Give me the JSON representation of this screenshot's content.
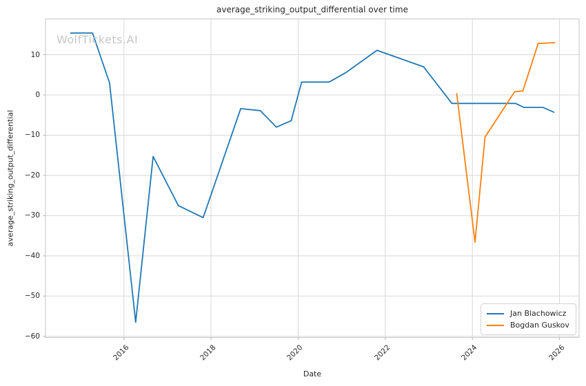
{
  "watermark": {
    "text": "WolfTickets.AI"
  },
  "chart_data": {
    "type": "line",
    "title": "average_striking_output_differential over time",
    "xlabel": "Date",
    "ylabel": "average_striking_output_differential",
    "grid": true,
    "legend_position": "lower right",
    "xlim": [
      2014.2,
      2026.45
    ],
    "ylim": [
      -60.3,
      18.9
    ],
    "x_ticks": [
      {
        "v": 2016,
        "label": "2016"
      },
      {
        "v": 2018,
        "label": "2018"
      },
      {
        "v": 2020,
        "label": "2020"
      },
      {
        "v": 2022,
        "label": "2022"
      },
      {
        "v": 2024,
        "label": "2024"
      },
      {
        "v": 2026,
        "label": "2026"
      }
    ],
    "y_ticks": [
      {
        "v": 10,
        "label": "10"
      },
      {
        "v": 0,
        "label": "0"
      },
      {
        "v": -10,
        "label": "−10"
      },
      {
        "v": -20,
        "label": "−20"
      },
      {
        "v": -30,
        "label": "−30"
      },
      {
        "v": -40,
        "label": "−40"
      },
      {
        "v": -50,
        "label": "−50"
      },
      {
        "v": -60,
        "label": "−60"
      }
    ],
    "series": [
      {
        "name": "Jan Blachowicz",
        "color": "#1f77b4",
        "x": [
          2014.78,
          2015.28,
          2015.67,
          2016.27,
          2016.67,
          2017.25,
          2017.82,
          2018.68,
          2019.13,
          2019.5,
          2019.84,
          2020.08,
          2020.71,
          2021.1,
          2021.81,
          2022.88,
          2023.53,
          2024.99,
          2025.18,
          2025.62,
          2025.87
        ],
        "y": [
          15.4,
          15.4,
          3.0,
          -56.5,
          -15.3,
          -27.5,
          -30.5,
          -3.4,
          -3.9,
          -8.0,
          -6.4,
          3.2,
          3.2,
          5.6,
          11.1,
          7.0,
          -2.1,
          -2.1,
          -3.1,
          -3.1,
          -4.3
        ]
      },
      {
        "name": "Bogdan Guskov",
        "color": "#ff7f0e",
        "x": [
          2023.64,
          2024.06,
          2024.29,
          2024.97,
          2025.16,
          2025.51,
          2025.89
        ],
        "y": [
          0.3,
          -36.6,
          -10.5,
          0.8,
          1.0,
          12.8,
          13.0
        ]
      }
    ]
  },
  "colors": {
    "grid": "#d8d8d8",
    "spine": "#c6c6c6",
    "tick_mark": "#b0b0b0",
    "text": "#262626",
    "watermark": "#c6c6c6",
    "background": "#ffffff"
  }
}
